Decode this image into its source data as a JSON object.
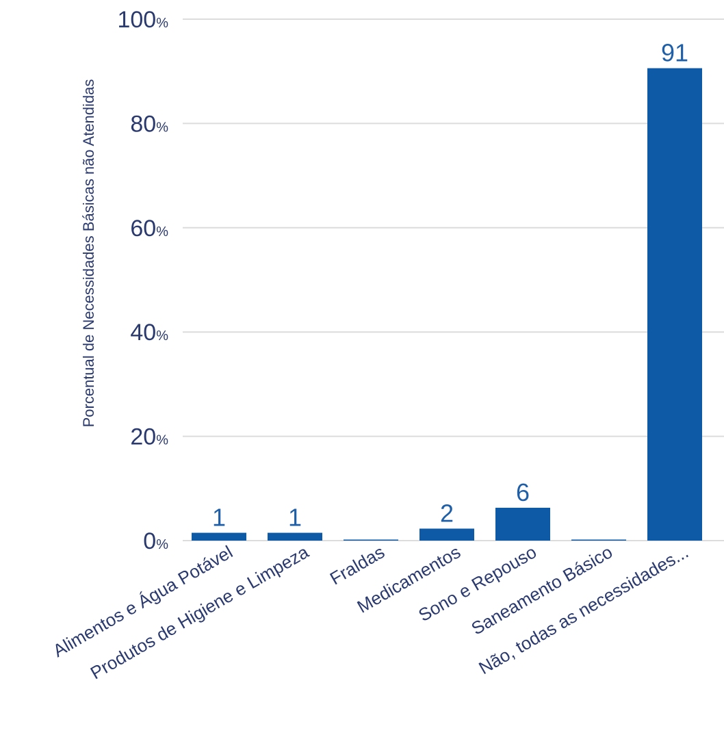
{
  "chart_data": {
    "type": "bar",
    "title": "",
    "xlabel": "",
    "ylabel": "Porcentual de Necessidades Básicas não Atendidas",
    "ylim": [
      0,
      100
    ],
    "yticks": [
      0,
      20,
      40,
      60,
      80,
      100
    ],
    "ytick_suffix": "%",
    "grid": true,
    "legend": "none",
    "bar_color": "#0f5aa6",
    "categories": [
      "Alimentos e Água Potável",
      "Produtos de Higiene e Limpeza",
      "Fraldas",
      "Medicamentos",
      "Sono e Repouso",
      "Saneamento Básico",
      "Não, todas as necessidades..."
    ],
    "values": [
      1.5,
      1.5,
      0.2,
      2.3,
      6.3,
      0.2,
      90.6
    ],
    "data_labels": [
      "1",
      "1",
      "",
      "2",
      "6",
      "",
      "91"
    ]
  }
}
